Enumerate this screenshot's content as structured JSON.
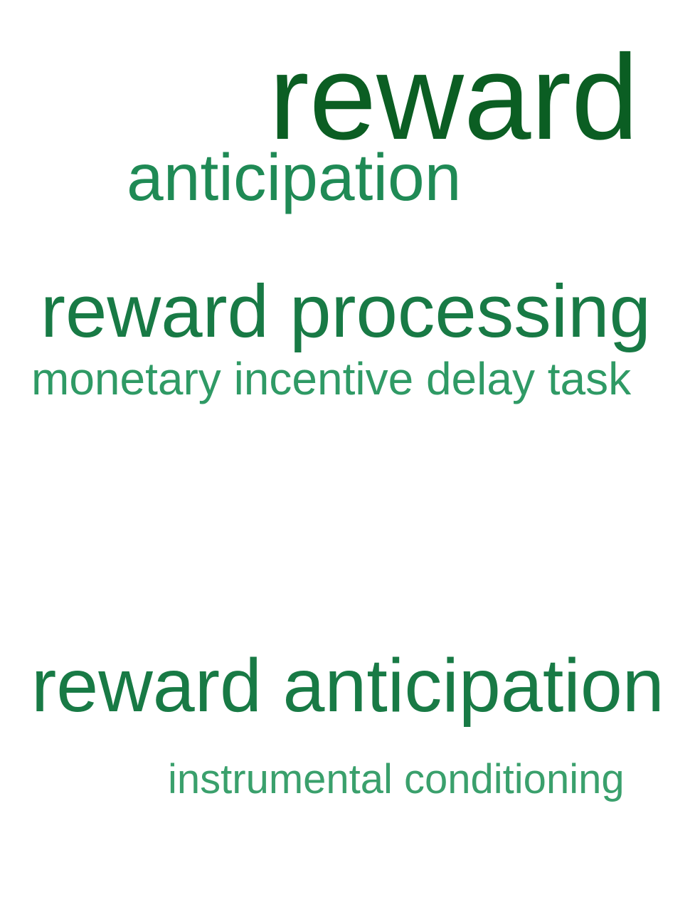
{
  "word_cloud": {
    "terms": [
      {
        "text": "reward",
        "color": "#0b5e23"
      },
      {
        "text": "anticipation",
        "color": "#1f8a55"
      },
      {
        "text": "reward processing",
        "color": "#187a45"
      },
      {
        "text": "monetary incentive delay task",
        "color": "#2f9a65"
      },
      {
        "text": "reward anticipation",
        "color": "#187a45"
      },
      {
        "text": "instrumental conditioning",
        "color": "#3aa06c"
      }
    ]
  }
}
